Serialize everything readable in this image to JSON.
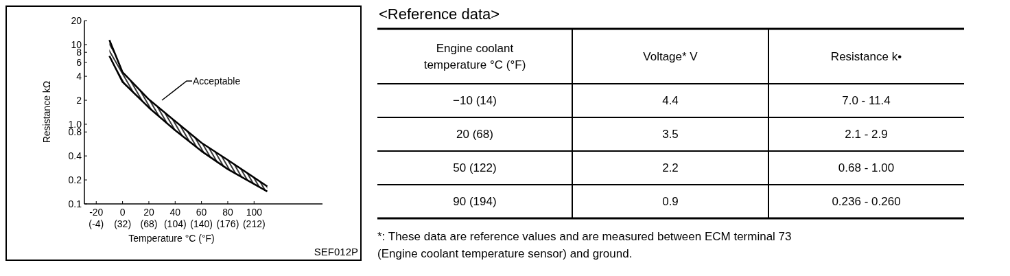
{
  "chart_data": [
    {
      "type": "line",
      "xlabel": "Temperature °C (°F)",
      "ylabel": "Resistance kΩ",
      "log": "y",
      "xlim": [
        -29,
        152
      ],
      "ylim": [
        0.1,
        20
      ],
      "xticks": [
        -20,
        0,
        20,
        40,
        60,
        80,
        100
      ],
      "x2lim": [
        -20.2,
        305.6
      ],
      "x2ticks": [
        {
          "value": -4,
          "label": "(-4)"
        },
        {
          "value": 32,
          "label": "(32)"
        },
        {
          "value": 68,
          "label": "(68)"
        },
        {
          "value": 104,
          "label": "(104)"
        },
        {
          "value": 140,
          "label": "(140)"
        },
        {
          "value": 176,
          "label": "(176)"
        },
        {
          "value": 212,
          "label": "(212)"
        }
      ],
      "yticks": [
        20,
        10,
        8,
        6,
        4,
        2,
        {
          "value": 1,
          "label": "1.0"
        },
        0.8,
        0.4,
        0.2,
        0.1
      ],
      "series": [
        {
          "color": "#000000",
          "x": [
            -10,
            0,
            20,
            40,
            60,
            80,
            110
          ],
          "values": [
            11.4,
            4.5,
            2.05,
            1.09,
            0.585,
            0.356,
            0.166
          ]
        },
        {
          "color": "#000000",
          "x": [
            -10,
            0,
            20,
            40,
            60,
            80,
            110
          ],
          "values": [
            7.2,
            3.4,
            1.62,
            0.84,
            0.46,
            0.273,
            0.143
          ]
        }
      ],
      "annotations": [
        "Acceptable",
        "SEF012P"
      ]
    },
    {
      "type": "other",
      "title": "<Reference data>",
      "categories": [
        "Engine coolant temperature °C (°F)",
        "Voltage* V",
        "Resistance k•"
      ],
      "y_categories": [
        "−10 (14)",
        "20 (68)",
        "50 (122)",
        "90 (194)"
      ],
      "cell_labels": [
        [
          "4.4",
          "7.0 - 11.4"
        ],
        [
          "3.5",
          "2.1 - 2.9"
        ],
        [
          "2.2",
          "0.68 - 1.00"
        ],
        [
          "0.9",
          "0.236 - 0.260"
        ]
      ],
      "annotations": [
        "*: These data are reference values and are measured between ECM terminal 73 (Engine coolant temperature sensor) and ground."
      ]
    }
  ]
}
